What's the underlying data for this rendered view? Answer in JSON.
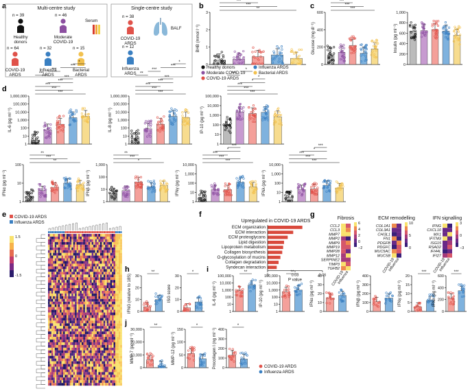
{
  "panels": {
    "a": "a",
    "b": "b",
    "c": "c",
    "d": "d",
    "e": "e",
    "f": "f",
    "g": "g",
    "h": "h",
    "i": "i",
    "j": "j"
  },
  "study": {
    "multi_title": "Multi-centre study",
    "single_title": "Single-centre study",
    "serum": "Serum",
    "balf": "BALF",
    "groups_multi": [
      {
        "n": "n = 39",
        "label1": "Healthy",
        "label2": "donors",
        "color": "#111111"
      },
      {
        "n": "n = 46",
        "label1": "Moderate",
        "label2": "COVID-19",
        "color": "#8c4fa0"
      },
      {
        "n": "n = 64",
        "label1": "COVID-19",
        "label2": "ARDS",
        "color": "#e0524a"
      },
      {
        "n": "n = 32",
        "label1": "Influenza",
        "label2": "ARDS",
        "color": "#3a7fc1"
      },
      {
        "n": "n = 15",
        "label1": "Bacterial",
        "label2": "ARDS",
        "color": "#f2c14e"
      }
    ],
    "groups_single": [
      {
        "n": "n = 38",
        "label1": "COVID-19",
        "label2": "ARDS",
        "color": "#e0524a"
      },
      {
        "n": "n = 12",
        "label1": "Influenza",
        "label2": "ARDS",
        "color": "#3a7fc1"
      }
    ]
  },
  "legend_b": [
    {
      "label": "Healthy donors",
      "color": "#111111"
    },
    {
      "label": "Influenza ARDS",
      "color": "#3a7fc1"
    },
    {
      "label": "Moderate COVID-19",
      "color": "#8c4fa0"
    },
    {
      "label": "Bacterial ARDS",
      "color": "#f2c14e"
    },
    {
      "label": "COVID-19 ARDS",
      "color": "#e0524a"
    }
  ],
  "colors": {
    "healthy": "#111111",
    "moderate": "#8c4fa0",
    "covid": "#e0524a",
    "influenza": "#3a7fc1",
    "bacterial": "#f2c14e",
    "bar_covid": "#f4a09a",
    "bar_moderate": "#c79bd0",
    "bar_healthy": "#bbbbbb",
    "bar_influenza": "#7fb2de",
    "bar_bacterial": "#f7dc8e"
  },
  "chart_data": [
    {
      "id": "b",
      "type": "bar",
      "ylabel": "BHB (mmol l⁻¹)",
      "yticks": [
        "0",
        "1",
        "2",
        "3"
      ],
      "ylim": [
        0,
        3
      ],
      "categories": [
        "Healthy donors",
        "Moderate COVID-19",
        "COVID-19 ARDS",
        "Influenza ARDS",
        "Bacterial ARDS"
      ],
      "values": [
        0.25,
        0.3,
        0.45,
        0.55,
        0.35
      ],
      "significance": [
        "**",
        "***",
        "***",
        "*",
        "*",
        "***"
      ]
    },
    {
      "id": "c1",
      "type": "bar",
      "ylabel": "Glucose (mg dl⁻¹)",
      "yticks": [
        "0",
        "200",
        "400",
        "600"
      ],
      "ylim": [
        0,
        600
      ],
      "categories": [
        "Healthy donors",
        "Moderate COVID-19",
        "COVID-19 ARDS",
        "Influenza ARDS",
        "Bacterial ARDS"
      ],
      "values": [
        110,
        140,
        220,
        130,
        180
      ],
      "significance": [
        "***",
        "***",
        "***",
        "**",
        "**",
        "***"
      ]
    },
    {
      "id": "c2",
      "type": "bar",
      "ylabel": "Insulin (pg ml⁻¹)",
      "yticks": [
        "0",
        "200",
        "400",
        "600",
        "800",
        "1,000"
      ],
      "ylim": [
        0,
        1000
      ],
      "categories": [
        "Healthy donors",
        "Moderate COVID-19",
        "COVID-19 ARDS",
        "Influenza ARDS",
        "Bacterial ARDS"
      ],
      "values": [
        640,
        650,
        670,
        640,
        560
      ]
    },
    {
      "id": "d-il6",
      "type": "bar",
      "scale": "log",
      "ylabel": "IL-6 (pg ml⁻¹)",
      "yticks": [
        "1",
        "10",
        "100",
        "1,000",
        "10,000",
        "100,000",
        "1,000,000"
      ],
      "categories": [
        "Healthy donors",
        "Moderate COVID-19",
        "COVID-19 ARDS",
        "Influenza ARDS",
        "Bacterial ARDS"
      ],
      "values": [
        3,
        60,
        300,
        2000,
        3000
      ],
      "significance": [
        "***",
        "***",
        "***",
        "***",
        "***",
        "***",
        "***",
        "***",
        "*"
      ]
    },
    {
      "id": "d-il8",
      "type": "bar",
      "scale": "log",
      "ylabel": "IL-8 (pg ml⁻¹)",
      "yticks": [
        "1",
        "10",
        "100",
        "1,000",
        "10,000",
        "100,000",
        "1,000,000"
      ],
      "categories": [
        "Healthy donors",
        "Moderate COVID-19",
        "COVID-19 ARDS",
        "Influenza ARDS",
        "Bacterial ARDS"
      ],
      "values": [
        5,
        80,
        300,
        3000,
        2000
      ],
      "significance": [
        "***",
        "***",
        "***",
        "***",
        "***",
        "**",
        "***",
        "***",
        "*"
      ]
    },
    {
      "id": "d-ip10",
      "type": "bar",
      "scale": "log",
      "ylabel": "IP-10 (pg ml⁻¹)",
      "yticks": [
        "1",
        "10",
        "100",
        "1,000",
        "10,000",
        "100,000"
      ],
      "categories": [
        "Healthy donors",
        "Moderate COVID-19",
        "COVID-19 ARDS",
        "Influenza ARDS",
        "Bacterial ARDS"
      ],
      "values": [
        100,
        2000,
        1500,
        2000,
        700
      ],
      "significance": [
        "***",
        "***",
        "***",
        "*",
        "*",
        "***",
        "*"
      ]
    },
    {
      "id": "d-ifna",
      "type": "bar",
      "scale": "log",
      "ylabel": "IFNα (pg ml⁻¹)",
      "yticks": [
        "1",
        "10",
        "100"
      ],
      "categories": [
        "Healthy donors",
        "Moderate COVID-19",
        "COVID-19 ARDS",
        "Influenza ARDS",
        "Bacterial ARDS"
      ],
      "values": [
        2,
        4,
        6,
        10,
        8
      ],
      "significance": [
        "**",
        "***",
        "**"
      ]
    },
    {
      "id": "d-ifnb",
      "type": "bar",
      "scale": "log",
      "ylabel": "IFNβ (pg ml⁻¹)",
      "yticks": [
        "1",
        "10",
        "100",
        "1,000"
      ],
      "categories": [
        "Healthy donors",
        "Moderate COVID-19",
        "COVID-19 ARDS",
        "Influenza ARDS",
        "Bacterial ARDS"
      ],
      "values": [
        5,
        8,
        40,
        15,
        20
      ],
      "significance": [
        "*",
        "***",
        "**"
      ]
    },
    {
      "id": "d-ifng",
      "type": "bar",
      "scale": "log",
      "ylabel": "IFNγ (pg ml⁻¹)",
      "yticks": [
        "1",
        "10",
        "100",
        "1,000",
        "10,000"
      ],
      "categories": [
        "Healthy donors",
        "Moderate COVID-19",
        "COVID-19 ARDS",
        "Influenza ARDS",
        "Bacterial ARDS"
      ],
      "values": [
        3,
        20,
        20,
        120,
        40
      ],
      "significance": [
        "***",
        "***",
        "***",
        "*",
        "***"
      ]
    },
    {
      "id": "d-ifnl",
      "type": "bar",
      "scale": "log",
      "ylabel": "IFNλ (pg ml⁻¹)",
      "yticks": [
        "1",
        "10",
        "100",
        "1,000",
        "10,000"
      ],
      "categories": [
        "Healthy donors",
        "Moderate COVID-19",
        "COVID-19 ARDS",
        "Influenza ARDS",
        "Bacterial ARDS"
      ],
      "values": [
        3,
        20,
        25,
        60,
        30
      ],
      "significance": [
        "***",
        "***",
        "***",
        "*",
        "***"
      ]
    },
    {
      "id": "e",
      "type": "heatmap",
      "legend": [
        {
          "label": "COVID-19 ARDS",
          "color": "#e0524a"
        },
        {
          "label": "Influenza ARDS",
          "color": "#3a7fc1"
        }
      ],
      "colorbar_ticks": [
        "1.5",
        "0",
        "-1.5"
      ]
    },
    {
      "id": "f",
      "type": "bar",
      "orientation": "horizontal",
      "title": "Upregulated in COVID-19 ARDS",
      "xlabel": "P value",
      "xticks": [
        "0",
        "0.03",
        "0.06"
      ],
      "xlim": [
        0,
        0.06
      ],
      "categories": [
        "ECM organization",
        "ECM interaction",
        "ECM proteoglycans",
        "Lipid digestion",
        "Lipoprotein metabolism",
        "Collagen biosynthesis",
        "O-glycosylation of mucins",
        "Collagen degradation",
        "Syndecan interaction"
      ],
      "values": [
        0.038,
        0.028,
        0.022,
        0.018,
        0.017,
        0.016,
        0.014,
        0.012,
        0.01
      ]
    },
    {
      "id": "g",
      "type": "heatmap",
      "columns": [
        "COVID-19",
        "Influenza"
      ],
      "groups": [
        {
          "title": "Fibrosis",
          "rows": [
            "CCL2",
            "CCL3",
            "MMP7",
            "MMP2",
            "MMP9",
            "MMP19",
            "MMP28",
            "MMP12",
            "SERPINE2",
            "TIMP3",
            "TGFB2"
          ],
          "ticks": [
            "6",
            "4",
            "2",
            "0",
            "−2"
          ]
        },
        {
          "title": "ECM remodelling",
          "rows": [
            "COL1A1",
            "COL3A1",
            "CHI3L1",
            "FN1",
            "PDGFB",
            "PDGFC",
            "MUC5AC",
            "MUC5B"
          ],
          "ticks": [
            "10",
            "5",
            "0"
          ]
        },
        {
          "title": "IFN signalling",
          "rows": [
            "IFNG",
            "CXCL10",
            "MX1",
            "IFITM3",
            "ISG15",
            "RSAD2",
            "IFI44L",
            "IFI27"
          ],
          "ticks": [
            "3",
            "0",
            "−3"
          ]
        }
      ]
    },
    {
      "id": "h1",
      "type": "bar",
      "ylabel": "IFNG (relative to 18S)",
      "yticks": [
        "0",
        "10",
        "20",
        "30"
      ],
      "ylim": [
        0,
        30
      ],
      "categories": [
        "COVID-19 ARDS",
        "Influenza ARDS"
      ],
      "values": [
        4,
        10
      ],
      "significance": [
        "**"
      ]
    },
    {
      "id": "h2",
      "type": "bar",
      "ylabel": "ISG score",
      "yticks": [
        "0",
        "10",
        "20",
        "30"
      ],
      "ylim": [
        0,
        30
      ],
      "categories": [
        "COVID-19 ARDS",
        "Influenza ARDS"
      ],
      "values": [
        3,
        8
      ],
      "significance": [
        "*"
      ]
    },
    {
      "id": "i-il6",
      "type": "bar",
      "scale": "log",
      "ylabel": "IL-6 (pg ml⁻¹)",
      "yticks": [
        "1",
        "10",
        "100",
        "1,000",
        "10,000",
        "100,000"
      ],
      "categories": [
        "COVID-19 ARDS",
        "Influenza ARDS"
      ],
      "values": [
        800,
        5000
      ],
      "significance": [
        "**"
      ]
    },
    {
      "id": "i-ip10",
      "type": "bar",
      "scale": "log",
      "ylabel": "IP-10 (pg ml⁻¹)",
      "yticks": [
        "1",
        "10",
        "100",
        "1,000",
        "10,000",
        "100,000"
      ],
      "categories": [
        "COVID-19 ARDS",
        "Influenza ARDS"
      ],
      "values": [
        600,
        1000
      ],
      "significance": [
        "**"
      ]
    },
    {
      "id": "i-ifna",
      "type": "bar",
      "ylabel": "IFNα (pg ml⁻¹)",
      "yticks": [
        "0",
        "10",
        "20",
        "30",
        "40"
      ],
      "ylim": [
        0,
        40
      ],
      "categories": [
        "COVID-19 ARDS",
        "Influenza ARDS"
      ],
      "values": [
        15,
        18
      ]
    },
    {
      "id": "i-ifnb",
      "type": "bar",
      "ylabel": "IFNβ (pg ml⁻¹)",
      "yticks": [
        "0",
        "100",
        "200",
        "300",
        "400"
      ],
      "ylim": [
        0,
        400
      ],
      "categories": [
        "COVID-19 ARDS",
        "Influenza ARDS"
      ],
      "values": [
        110,
        150
      ]
    },
    {
      "id": "i-ifng",
      "type": "bar",
      "ylabel": "IFNγ (pg ml⁻¹)",
      "yticks": [
        "0",
        "5",
        "10",
        "15",
        "20"
      ],
      "ylim": [
        0,
        20
      ],
      "categories": [
        "COVID-19 ARDS",
        "Influenza ARDS"
      ],
      "values": [
        2.5,
        6
      ],
      "significance": [
        "***"
      ]
    },
    {
      "id": "i-ifnl",
      "type": "bar",
      "ylabel": "IFNλ (pg ml⁻¹)",
      "yticks": [
        "0",
        "200",
        "400",
        "600"
      ],
      "ylim": [
        0,
        600
      ],
      "categories": [
        "COVID-19 ARDS",
        "Influenza ARDS"
      ],
      "values": [
        220,
        350
      ],
      "significance": [
        "***"
      ]
    },
    {
      "id": "j-mmp7",
      "type": "bar",
      "ylabel": "MMP-7 (pg ml⁻¹)",
      "yticks": [
        "0",
        "10,000",
        "20,000",
        "30,000"
      ],
      "ylim": [
        0,
        30000
      ],
      "categories": [
        "COVID-19 ARDS",
        "Influenza ARDS"
      ],
      "values": [
        6000,
        1500
      ],
      "significance": [
        "**"
      ]
    },
    {
      "id": "j-mmp12",
      "type": "bar",
      "ylabel": "MMP-12 (pg ml⁻¹)",
      "yticks": [
        "0",
        "50",
        "100",
        "150"
      ],
      "ylim": [
        0,
        150
      ],
      "categories": [
        "COVID-19 ARDS",
        "Influenza ARDS"
      ],
      "values": [
        55,
        35
      ],
      "significance": [
        "*"
      ]
    },
    {
      "id": "j-proc",
      "type": "bar",
      "ylabel": "Procollagen I (ng ml⁻¹)",
      "yticks": [
        "0",
        "100",
        "200",
        "300",
        "400"
      ],
      "ylim": [
        0,
        400
      ],
      "categories": [
        "COVID-19 ARDS",
        "Influenza ARDS"
      ],
      "values": [
        130,
        90
      ],
      "significance": [
        "*"
      ]
    }
  ],
  "legend_j": [
    {
      "label": "COVID-19 ARDS",
      "color": "#e0524a"
    },
    {
      "label": "Influenza ARDS",
      "color": "#3a7fc1"
    }
  ]
}
